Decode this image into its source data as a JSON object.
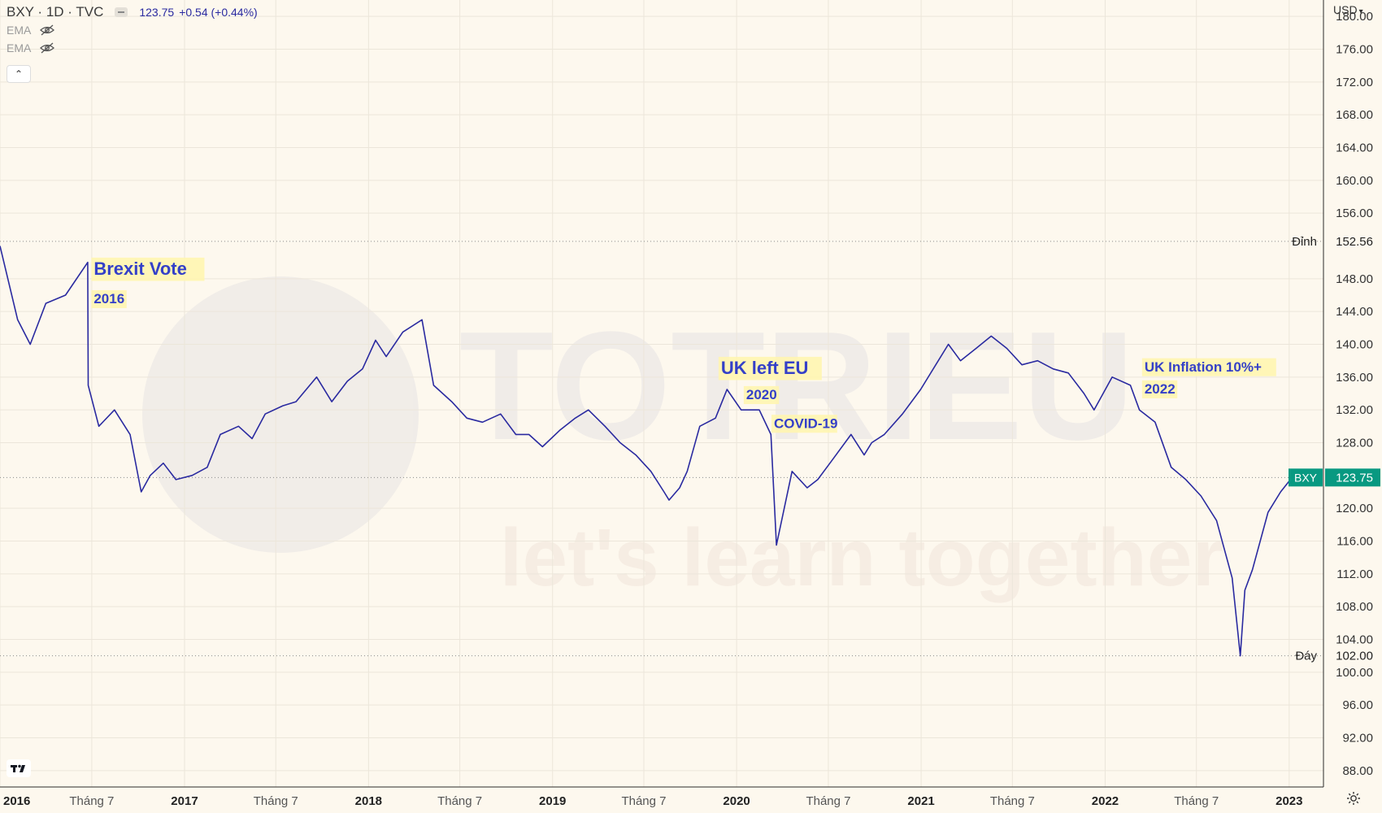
{
  "legend": {
    "symbol": "BXY · 1D · TVC",
    "price": "123.75",
    "change": "+0.54 (+0.44%)",
    "indicators": [
      "EMA",
      "EMA"
    ],
    "collapse_icon": "chevron-up-icon"
  },
  "currency": "USD",
  "colors": {
    "line": "#2a2aa0",
    "annotation_text": "#3440c8",
    "annotation_bg": "#fff5b0",
    "price_label": "#089981",
    "background": "#fdf8ee"
  },
  "watermark": {
    "brand": "TOTRIEU",
    "tagline": "let's learn together"
  },
  "chart_data": {
    "type": "line",
    "title": "",
    "series": [
      {
        "name": "BXY",
        "x": [
          "2016-01-01",
          "2016-02-05",
          "2016-03-01",
          "2016-04-01",
          "2016-05-10",
          "2016-06-23",
          "2016-06-24",
          "2016-07-15",
          "2016-08-15",
          "2016-09-15",
          "2016-10-07",
          "2016-10-25",
          "2016-11-20",
          "2016-12-15",
          "2017-01-16",
          "2017-02-15",
          "2017-03-13",
          "2017-04-18",
          "2017-05-15",
          "2017-06-10",
          "2017-07-15",
          "2017-08-10",
          "2017-09-20",
          "2017-10-20",
          "2017-11-20",
          "2017-12-20",
          "2018-01-15",
          "2018-02-05",
          "2018-03-10",
          "2018-04-17",
          "2018-05-10",
          "2018-06-15",
          "2018-07-15",
          "2018-08-15",
          "2018-09-20",
          "2018-10-20",
          "2018-11-15",
          "2018-12-12",
          "2019-01-15",
          "2019-02-15",
          "2019-03-13",
          "2019-04-15",
          "2019-05-15",
          "2019-06-15",
          "2019-07-15",
          "2019-08-10",
          "2019-08-20",
          "2019-09-10",
          "2019-09-25",
          "2019-10-20",
          "2019-11-20",
          "2019-12-13",
          "2020-01-10",
          "2020-02-15",
          "2020-03-09",
          "2020-03-20",
          "2020-04-20",
          "2020-05-20",
          "2020-06-10",
          "2020-07-10",
          "2020-08-15",
          "2020-09-10",
          "2020-09-25",
          "2020-10-20",
          "2020-11-25",
          "2020-12-31",
          "2021-01-30",
          "2021-02-24",
          "2021-03-20",
          "2021-04-20",
          "2021-05-20",
          "2021-06-20",
          "2021-07-20",
          "2021-08-20",
          "2021-09-20",
          "2021-10-20",
          "2021-11-20",
          "2021-12-10",
          "2022-01-15",
          "2022-02-20",
          "2022-03-10",
          "2022-04-10",
          "2022-05-12",
          "2022-06-10",
          "2022-07-10",
          "2022-08-10",
          "2022-09-10",
          "2022-09-26",
          "2022-10-05",
          "2022-10-20",
          "2022-11-20",
          "2022-12-15",
          "2023-01-10",
          "2023-02-01",
          "2023-02-15"
        ],
        "y": [
          152.0,
          143.0,
          140.0,
          145.0,
          146.0,
          150.0,
          135.0,
          130.0,
          132.0,
          129.0,
          122.0,
          124.0,
          125.5,
          123.5,
          124.0,
          125.0,
          129.0,
          130.0,
          128.5,
          131.5,
          132.5,
          133.0,
          136.0,
          133.0,
          135.5,
          137.0,
          140.5,
          138.5,
          141.5,
          143.0,
          135.0,
          133.0,
          131.0,
          130.5,
          131.5,
          129.0,
          129.0,
          127.5,
          129.5,
          131.0,
          132.0,
          130.0,
          128.0,
          126.5,
          124.5,
          122.0,
          121.0,
          122.5,
          124.5,
          130.0,
          131.0,
          134.5,
          132.0,
          132.0,
          129.0,
          115.5,
          124.5,
          122.5,
          123.5,
          126.0,
          129.0,
          126.5,
          128.0,
          129.0,
          131.5,
          134.5,
          137.5,
          140.0,
          138.0,
          139.5,
          141.0,
          139.5,
          137.5,
          138.0,
          137.0,
          136.5,
          134.0,
          132.0,
          136.0,
          135.0,
          132.0,
          130.5,
          125.0,
          123.5,
          121.5,
          118.5,
          111.5,
          102.0,
          110.0,
          112.5,
          119.5,
          122.0,
          124.0,
          123.5,
          123.75
        ]
      }
    ],
    "ylim": [
      86.0,
      182.0
    ],
    "yticks": [
      180.0,
      176.0,
      172.0,
      168.0,
      164.0,
      160.0,
      156.0,
      148.0,
      144.0,
      140.0,
      136.0,
      132.0,
      128.0,
      120.0,
      116.0,
      112.0,
      108.0,
      104.0,
      100.0,
      96.0,
      92.0,
      88.0
    ],
    "xlim": [
      "2016-01-01",
      "2023-03-10"
    ],
    "xticks": [
      {
        "date": "2016-01-01",
        "label": "2016",
        "major": true
      },
      {
        "date": "2016-07-01",
        "label": "Tháng 7",
        "major": false
      },
      {
        "date": "2017-01-01",
        "label": "2017",
        "major": true
      },
      {
        "date": "2017-07-01",
        "label": "Tháng 7",
        "major": false
      },
      {
        "date": "2018-01-01",
        "label": "2018",
        "major": true
      },
      {
        "date": "2018-07-01",
        "label": "Tháng 7",
        "major": false
      },
      {
        "date": "2019-01-01",
        "label": "2019",
        "major": true
      },
      {
        "date": "2019-07-01",
        "label": "Tháng 7",
        "major": false
      },
      {
        "date": "2020-01-01",
        "label": "2020",
        "major": true
      },
      {
        "date": "2020-07-01",
        "label": "Tháng 7",
        "major": false
      },
      {
        "date": "2021-01-01",
        "label": "2021",
        "major": true
      },
      {
        "date": "2021-07-01",
        "label": "Tháng 7",
        "major": false
      },
      {
        "date": "2022-01-01",
        "label": "2022",
        "major": true
      },
      {
        "date": "2022-07-01",
        "label": "Tháng 7",
        "major": false
      },
      {
        "date": "2023-01-01",
        "label": "2023",
        "major": true
      }
    ],
    "hlines": [
      {
        "label": "Đỉnh",
        "value": 152.56
      },
      {
        "label": "Đáy",
        "value": 102.0
      }
    ],
    "last_price": {
      "label": "BXY",
      "value": "123.75"
    },
    "annotations": [
      {
        "text": "Brexit Vote",
        "date": "2016-07-05",
        "y": 148.5,
        "size": "large"
      },
      {
        "text": "2016",
        "date": "2016-07-05",
        "y": 145.0,
        "size": "medium"
      },
      {
        "text": "UK left EU",
        "date": "2019-12-01",
        "y": 136.4,
        "size": "large"
      },
      {
        "text": "2020",
        "date": "2020-01-20",
        "y": 133.3,
        "size": "medium"
      },
      {
        "text": "COVID-19",
        "date": "2020-03-15",
        "y": 129.8,
        "size": "medium"
      },
      {
        "text": "UK Inflation 10%+",
        "date": "2022-03-20",
        "y": 136.7,
        "size": "medium"
      },
      {
        "text": "2022",
        "date": "2022-03-20",
        "y": 134.0,
        "size": "medium"
      }
    ],
    "grid": true
  }
}
